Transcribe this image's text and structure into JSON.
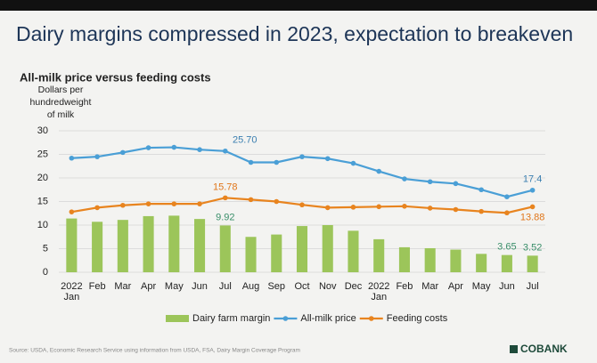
{
  "chart_data": {
    "type": "bar",
    "title": "Dairy margins compressed in 2023, expectation to breakeven",
    "subtitle": "All-milk price versus feeding costs",
    "y_label": [
      "Dollars per",
      "hundredweight",
      "of milk"
    ],
    "categories": [
      "2022 Jan",
      "Feb",
      "Mar",
      "Apr",
      "May",
      "Jun",
      "Jul",
      "Aug",
      "Sep",
      "Oct",
      "Nov",
      "Dec",
      "2022 Jan",
      "Feb",
      "Mar",
      "Apr",
      "May",
      "Jun",
      "Jul"
    ],
    "series": [
      {
        "name": "Dairy farm margin",
        "type": "bar",
        "color": "#9cc55a",
        "label_color": "#3a8f6a",
        "values": [
          11.4,
          10.7,
          11.1,
          11.9,
          12.0,
          11.3,
          9.92,
          7.5,
          8.0,
          9.8,
          10.0,
          8.8,
          7.0,
          5.3,
          5.1,
          4.8,
          3.9,
          3.65,
          3.52
        ],
        "value_labels": [
          null,
          null,
          null,
          null,
          null,
          null,
          "9.92",
          null,
          null,
          null,
          null,
          null,
          null,
          null,
          null,
          null,
          null,
          "3.65",
          "3.52"
        ]
      },
      {
        "name": "All-milk price",
        "type": "line",
        "color": "#4a9fd6",
        "label_color": "#3b7fb0",
        "values": [
          24.2,
          24.5,
          25.4,
          26.4,
          26.5,
          26.0,
          25.7,
          23.3,
          23.3,
          24.5,
          24.1,
          23.1,
          21.4,
          19.8,
          19.2,
          18.8,
          17.5,
          16.0,
          17.4
        ],
        "value_labels": [
          null,
          null,
          null,
          null,
          null,
          null,
          "25.70",
          null,
          null,
          null,
          null,
          null,
          null,
          null,
          null,
          null,
          null,
          null,
          "17.4"
        ]
      },
      {
        "name": "Feeding costs",
        "type": "line",
        "color": "#e8841f",
        "label_color": "#e0761a",
        "values": [
          12.8,
          13.7,
          14.2,
          14.5,
          14.5,
          14.5,
          15.78,
          15.4,
          15.0,
          14.3,
          13.7,
          13.8,
          13.9,
          14.0,
          13.6,
          13.3,
          12.9,
          12.6,
          13.88
        ],
        "value_labels": [
          null,
          null,
          null,
          null,
          null,
          null,
          "15.78",
          null,
          null,
          null,
          null,
          null,
          null,
          null,
          null,
          null,
          null,
          null,
          "13.88"
        ]
      }
    ],
    "ylim": [
      0,
      30
    ],
    "yticks": [
      0,
      5,
      10,
      15,
      20,
      25,
      30
    ],
    "grid": true,
    "source": "Source: USDA, Economic Research Service using information from USDA, FSA, Dairy Margin Coverage Program",
    "logo": "COBANK"
  }
}
